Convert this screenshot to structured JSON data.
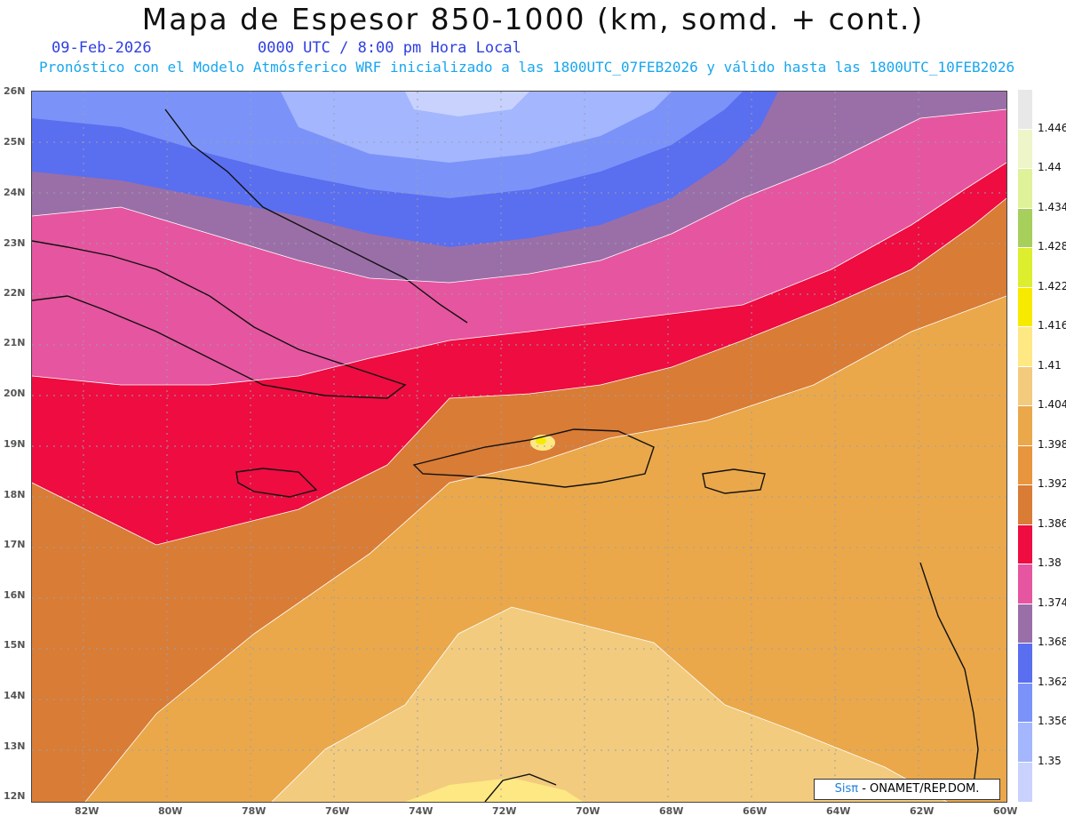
{
  "header": {
    "title": "Mapa de Espesor 850-1000 (km, somd. + cont.)",
    "date": "09-Feb-2026",
    "valid_time": "0000 UTC / 8:00 pm Hora Local",
    "forecast_line": "Pronóstico con el Modelo Atmósferico WRF inicializado a las 1800UTC_07FEB2026 y válido hasta las  1800UTC_10FEB2026"
  },
  "axes": {
    "lat_labels": [
      "26N",
      "25N",
      "24N",
      "23N",
      "22N",
      "21N",
      "20N",
      "19N",
      "18N",
      "17N",
      "16N",
      "15N",
      "14N",
      "13N",
      "12N"
    ],
    "lon_labels": [
      "82W",
      "80W",
      "78W",
      "76W",
      "74W",
      "72W",
      "70W",
      "68W",
      "66W",
      "64W",
      "62W",
      "60W"
    ]
  },
  "colorbar": {
    "levels": [
      "1.446",
      "1.44",
      "1.434",
      "1.428",
      "1.422",
      "1.416",
      "1.41",
      "1.404",
      "1.398",
      "1.392",
      "1.386",
      "1.38",
      "1.374",
      "1.368",
      "1.362",
      "1.356",
      "1.35"
    ],
    "colors": [
      "#e8e8e8",
      "#eef5c8",
      "#dff29a",
      "#a6cf5b",
      "#dcee2d",
      "#f6ea00",
      "#fde884",
      "#f2cb7e",
      "#eaa84a",
      "#e8963d",
      "#d97c36",
      "#ee0c40",
      "#e6559f",
      "#9a6fa8",
      "#5a6ef0",
      "#7b93f8",
      "#a4b6fd",
      "#c8d2fd"
    ]
  },
  "credit": {
    "logo": "Sisπ",
    "text": " - ONAMET/REP.DOM."
  }
}
